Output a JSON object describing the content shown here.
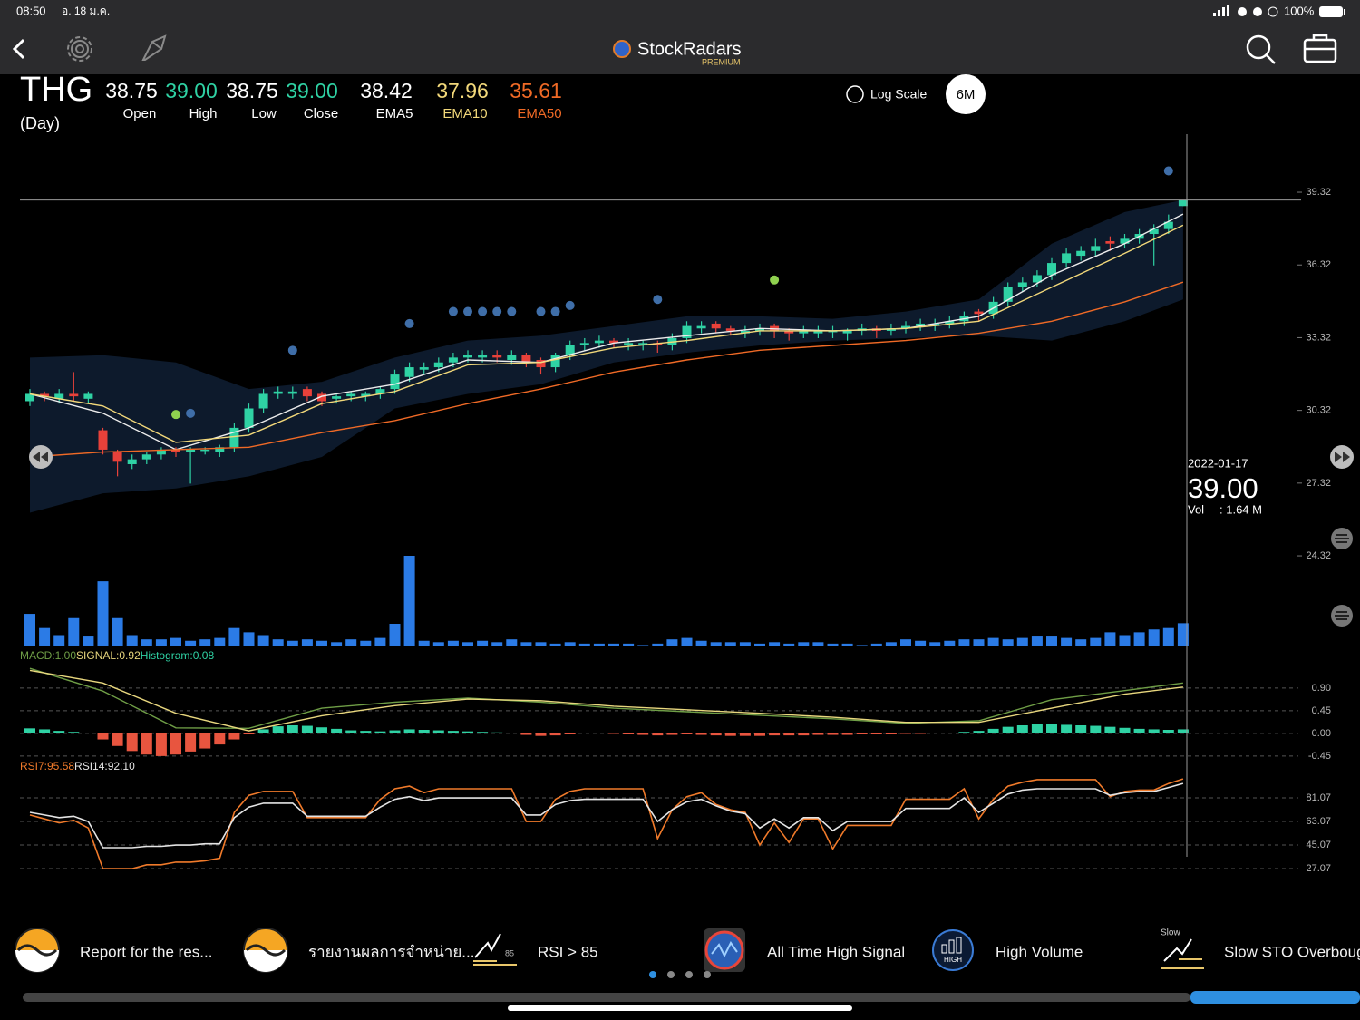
{
  "status_bar": {
    "time": "08:50",
    "date": "อ. 18 ม.ค.",
    "battery": "100%"
  },
  "header": {
    "brand": "StockRadars",
    "badge": "PREMIUM"
  },
  "quote": {
    "symbol": "THG",
    "period": "(Day)",
    "fields": [
      {
        "value": "38.75",
        "label": "Open"
      },
      {
        "value": "39.00",
        "label": "High"
      },
      {
        "value": "38.75",
        "label": "Low"
      },
      {
        "value": "39.00",
        "label": "Close"
      },
      {
        "value": "38.42",
        "label": "EMA5"
      },
      {
        "value": "37.96",
        "label": "EMA10"
      },
      {
        "value": "35.61",
        "label": "EMA50"
      }
    ]
  },
  "controls": {
    "log_scale": "Log Scale",
    "range": "6M"
  },
  "crosshair": {
    "date": "2022-01-17",
    "price": "39.00",
    "volume_label": "Vol",
    "volume": ": 1.64 M"
  },
  "signals": [
    {
      "text": "Report for the res..."
    },
    {
      "text": "รายงานผลการจำหน่าย..."
    },
    {
      "text": "RSI > 85",
      "badge": "85"
    },
    {
      "text": "All Time High Signal"
    },
    {
      "text": "High Volume",
      "badge": "HIGH"
    },
    {
      "text": "Slow STO Overboug",
      "badge": "Slow"
    }
  ],
  "chart_data": [
    {
      "type": "candlestick",
      "ylim": [
        24.06,
        41.64
      ],
      "yticks": [
        39.32,
        36.32,
        33.32,
        30.32,
        27.32,
        24.32
      ],
      "grid": false,
      "up_color": "#2fd2a4",
      "down_color": "#e8413a",
      "open": [
        30.7,
        31.0,
        30.8,
        31.0,
        30.8,
        29.5,
        28.6,
        28.1,
        28.3,
        28.5,
        28.7,
        28.6,
        28.7,
        28.6,
        28.8,
        29.6,
        30.4,
        31.0,
        31.0,
        31.2,
        31.0,
        30.8,
        30.9,
        30.9,
        31.0,
        31.2,
        31.7,
        32.0,
        32.1,
        32.3,
        32.5,
        32.5,
        32.6,
        32.4,
        32.6,
        32.4,
        32.1,
        32.6,
        33.0,
        33.1,
        33.2,
        33.0,
        33.0,
        33.1,
        33.0,
        33.3,
        33.7,
        33.9,
        33.7,
        33.5,
        33.6,
        33.8,
        33.6,
        33.5,
        33.5,
        33.6,
        33.5,
        33.6,
        33.7,
        33.6,
        33.7,
        33.8,
        33.8,
        33.9,
        34.0,
        34.4,
        34.3,
        34.8,
        35.4,
        35.6,
        35.9,
        36.4,
        36.7,
        36.9,
        37.3,
        37.2,
        37.4,
        37.6,
        37.8,
        38.75
      ],
      "high": [
        31.2,
        31.1,
        31.2,
        31.9,
        31.1,
        29.6,
        28.7,
        28.5,
        28.6,
        28.8,
        28.8,
        28.8,
        28.8,
        28.9,
        29.8,
        30.6,
        31.2,
        31.3,
        31.3,
        31.3,
        31.1,
        31.0,
        31.1,
        31.1,
        31.3,
        32.0,
        32.3,
        32.3,
        32.5,
        32.7,
        32.8,
        32.8,
        32.8,
        32.8,
        32.7,
        32.5,
        32.7,
        33.2,
        33.3,
        33.4,
        33.3,
        33.3,
        33.2,
        33.2,
        33.5,
        34.0,
        34.0,
        34.0,
        33.8,
        33.8,
        33.9,
        33.9,
        33.7,
        33.8,
        33.8,
        33.8,
        33.7,
        33.9,
        33.8,
        33.9,
        34.0,
        34.1,
        34.1,
        34.2,
        34.4,
        34.5,
        35.0,
        35.6,
        35.8,
        36.1,
        36.6,
        37.0,
        37.1,
        37.4,
        37.5,
        37.6,
        37.8,
        38.0,
        38.4,
        39.0
      ],
      "low": [
        30.5,
        30.7,
        30.6,
        30.7,
        30.6,
        28.5,
        27.6,
        27.9,
        28.1,
        28.3,
        28.4,
        27.3,
        28.5,
        28.4,
        28.6,
        29.4,
        30.2,
        30.8,
        30.8,
        30.7,
        30.5,
        30.6,
        30.7,
        30.7,
        30.8,
        31.0,
        31.5,
        31.8,
        31.9,
        32.1,
        32.3,
        32.3,
        32.3,
        32.2,
        32.1,
        31.8,
        31.9,
        32.4,
        32.8,
        32.9,
        32.9,
        32.8,
        32.8,
        32.7,
        32.8,
        33.1,
        33.5,
        33.5,
        33.4,
        33.3,
        33.4,
        33.3,
        33.2,
        33.3,
        33.3,
        33.3,
        33.2,
        33.4,
        33.3,
        33.4,
        33.5,
        33.6,
        33.6,
        33.7,
        33.8,
        34.0,
        34.1,
        34.6,
        35.2,
        35.4,
        35.7,
        36.2,
        36.5,
        36.7,
        36.9,
        37.0,
        37.2,
        36.3,
        37.6,
        38.75
      ],
      "close": [
        31.0,
        30.9,
        31.0,
        30.9,
        31.0,
        28.7,
        28.2,
        28.3,
        28.5,
        28.7,
        28.6,
        28.7,
        28.7,
        28.8,
        29.6,
        30.4,
        31.0,
        31.1,
        31.1,
        30.9,
        30.7,
        30.9,
        31.0,
        31.0,
        31.2,
        31.8,
        32.1,
        32.1,
        32.3,
        32.5,
        32.6,
        32.6,
        32.5,
        32.6,
        32.3,
        32.1,
        32.6,
        33.0,
        33.1,
        33.2,
        33.1,
        33.1,
        33.1,
        33.0,
        33.3,
        33.8,
        33.8,
        33.7,
        33.6,
        33.6,
        33.7,
        33.6,
        33.5,
        33.6,
        33.6,
        33.6,
        33.6,
        33.7,
        33.6,
        33.7,
        33.8,
        33.9,
        33.9,
        34.0,
        34.2,
        34.3,
        34.8,
        35.4,
        35.6,
        35.9,
        36.4,
        36.8,
        36.9,
        37.1,
        37.2,
        37.4,
        37.6,
        37.8,
        38.1,
        39.0
      ],
      "band": {
        "color": "#0d1a2c",
        "x": [
          0,
          5,
          10,
          15,
          20,
          25,
          30,
          35,
          40,
          45,
          50,
          55,
          60,
          65,
          70,
          75,
          79
        ],
        "upper": [
          32.5,
          32.6,
          32.3,
          31.2,
          31.5,
          32.5,
          33.2,
          33.4,
          33.8,
          34.2,
          34.2,
          34.1,
          34.4,
          34.9,
          37.2,
          38.5,
          39.0
        ],
        "lower": [
          26.1,
          26.9,
          27.1,
          27.6,
          28.4,
          30.4,
          31.0,
          31.4,
          32.3,
          32.7,
          33.0,
          33.2,
          33.3,
          33.4,
          33.2,
          34.0,
          34.9
        ]
      },
      "series": [
        {
          "color": "#ececec",
          "x": [
            0,
            5,
            10,
            15,
            20,
            25,
            30,
            35,
            40,
            45,
            50,
            55,
            60,
            65,
            70,
            75,
            79
          ],
          "values": [
            31.0,
            30.2,
            28.7,
            29.6,
            30.9,
            31.4,
            32.4,
            32.3,
            33.1,
            33.4,
            33.7,
            33.6,
            33.7,
            34.2,
            35.9,
            37.2,
            38.42
          ]
        },
        {
          "color": "#f2d87a",
          "x": [
            0,
            5,
            10,
            15,
            20,
            25,
            30,
            35,
            40,
            45,
            50,
            55,
            60,
            65,
            70,
            75,
            79
          ],
          "values": [
            31.0,
            30.5,
            29.0,
            29.3,
            30.6,
            31.1,
            32.2,
            32.3,
            32.9,
            33.2,
            33.6,
            33.6,
            33.7,
            34.0,
            35.4,
            36.8,
            37.96
          ]
        },
        {
          "color": "#f06a26",
          "x": [
            0,
            5,
            10,
            15,
            20,
            25,
            30,
            35,
            40,
            45,
            50,
            55,
            60,
            65,
            70,
            75,
            79
          ],
          "values": [
            28.4,
            28.6,
            28.7,
            28.8,
            29.4,
            29.9,
            30.6,
            31.2,
            31.9,
            32.4,
            32.8,
            33.0,
            33.2,
            33.5,
            34.0,
            34.8,
            35.61
          ]
        }
      ],
      "markers": [
        {
          "color": "#3f6ea8",
          "x": [
            11,
            18,
            26,
            29,
            30,
            31,
            32,
            33,
            35,
            36,
            37,
            43,
            78
          ],
          "values": [
            30.2,
            32.8,
            33.9,
            34.4,
            34.4,
            34.4,
            34.4,
            34.4,
            34.4,
            34.4,
            34.65,
            34.9,
            40.2
          ]
        },
        {
          "color": "#8fd14f",
          "x": [
            10,
            51
          ],
          "values": [
            30.15,
            35.7
          ]
        }
      ]
    },
    {
      "type": "bar",
      "color": "#2b7be6",
      "values": [
        2.3,
        1.3,
        0.8,
        2.0,
        0.7,
        4.6,
        2.0,
        0.8,
        0.5,
        0.5,
        0.6,
        0.4,
        0.5,
        0.6,
        1.3,
        1.0,
        0.8,
        0.5,
        0.4,
        0.5,
        0.4,
        0.3,
        0.5,
        0.4,
        0.6,
        1.6,
        6.4,
        0.4,
        0.3,
        0.4,
        0.3,
        0.4,
        0.3,
        0.5,
        0.3,
        0.3,
        0.2,
        0.3,
        0.2,
        0.2,
        0.2,
        0.2,
        0.1,
        0.2,
        0.5,
        0.6,
        0.4,
        0.3,
        0.3,
        0.3,
        0.2,
        0.3,
        0.2,
        0.3,
        0.3,
        0.2,
        0.2,
        0.1,
        0.2,
        0.3,
        0.5,
        0.4,
        0.3,
        0.4,
        0.5,
        0.5,
        0.6,
        0.5,
        0.6,
        0.7,
        0.7,
        0.6,
        0.5,
        0.6,
        1.0,
        0.8,
        1.0,
        1.2,
        1.3,
        1.64
      ]
    },
    {
      "type": "combo",
      "ylim": [
        -0.65,
        1.33
      ],
      "grid": true,
      "yticks": [
        {
          "value": 0.9,
          "label": "0.90"
        },
        {
          "value": 0.45,
          "label": "0.45"
        },
        {
          "value": 0,
          "label": "0.00"
        },
        {
          "value": -0.45,
          "label": "-0.45"
        }
      ],
      "series": [
        {
          "name": "MACD:1.00",
          "type": "line",
          "color": "#6f9e46",
          "x": [
            0,
            5,
            10,
            15,
            20,
            25,
            30,
            35,
            40,
            45,
            50,
            55,
            60,
            65,
            70,
            75,
            79
          ],
          "values": [
            1.29,
            0.84,
            0.11,
            0.1,
            0.5,
            0.62,
            0.7,
            0.62,
            0.5,
            0.43,
            0.36,
            0.29,
            0.2,
            0.25,
            0.67,
            0.85,
            1.0
          ]
        },
        {
          "name": "SIGNAL:0.92",
          "type": "line",
          "color": "#e8d77e",
          "x": [
            0,
            5,
            10,
            15,
            20,
            25,
            30,
            35,
            40,
            45,
            50,
            55,
            60,
            65,
            70,
            75,
            79
          ],
          "values": [
            1.25,
            1.0,
            0.4,
            0.05,
            0.35,
            0.55,
            0.68,
            0.65,
            0.54,
            0.47,
            0.4,
            0.32,
            0.22,
            0.22,
            0.5,
            0.78,
            0.92
          ]
        },
        {
          "name": "Histogram:0.08",
          "type": "bar",
          "color": "#2fd2a4",
          "negative_color": "#e8553f",
          "values": [
            0.1,
            0.08,
            0.05,
            0.03,
            0.0,
            -0.12,
            -0.25,
            -0.35,
            -0.42,
            -0.45,
            -0.42,
            -0.36,
            -0.3,
            -0.22,
            -0.12,
            -0.02,
            0.08,
            0.14,
            0.16,
            0.15,
            0.12,
            0.09,
            0.06,
            0.05,
            0.04,
            0.06,
            0.08,
            0.07,
            0.06,
            0.05,
            0.04,
            0.03,
            0.02,
            0.0,
            -0.03,
            -0.05,
            -0.04,
            -0.02,
            0.0,
            0.01,
            -0.01,
            -0.02,
            -0.03,
            -0.04,
            -0.03,
            -0.02,
            -0.03,
            -0.04,
            -0.05,
            -0.05,
            -0.05,
            -0.04,
            -0.04,
            -0.04,
            -0.03,
            -0.03,
            -0.03,
            -0.02,
            -0.02,
            -0.02,
            -0.01,
            -0.01,
            0.0,
            0.01,
            0.03,
            0.05,
            0.09,
            0.13,
            0.16,
            0.18,
            0.18,
            0.17,
            0.16,
            0.15,
            0.13,
            0.11,
            0.09,
            0.08,
            0.07,
            0.08
          ]
        }
      ]
    },
    {
      "type": "line",
      "ylim": [
        22.22,
        101.85
      ],
      "grid": true,
      "yticks": [
        81.07,
        63.07,
        45.07,
        27.07
      ],
      "series": [
        {
          "name": "RSI7:95.58",
          "color": "#f07a2a",
          "values": [
            68,
            65,
            62,
            64,
            58,
            27,
            27,
            27,
            30,
            30,
            32,
            32,
            33,
            35,
            70,
            83,
            86,
            86,
            86,
            66,
            66,
            66,
            66,
            66,
            80,
            88,
            90,
            85,
            88,
            88,
            88,
            88,
            88,
            88,
            63,
            63,
            80,
            86,
            88,
            88,
            88,
            88,
            88,
            50,
            72,
            82,
            85,
            76,
            72,
            70,
            45,
            62,
            47,
            65,
            65,
            42,
            60,
            60,
            60,
            60,
            80,
            80,
            80,
            80,
            88,
            65,
            80,
            90,
            93,
            95,
            95,
            95,
            95,
            95,
            82,
            86,
            87,
            87,
            92,
            95.58
          ]
        },
        {
          "name": "RSI14:92.10",
          "color": "#e4e4e4",
          "values": [
            70,
            68,
            66,
            67,
            63,
            43,
            43,
            43,
            44,
            44,
            45,
            45,
            46,
            46,
            66,
            74,
            77,
            77,
            77,
            67,
            67,
            67,
            67,
            67,
            74,
            80,
            82,
            79,
            81,
            81,
            81,
            81,
            81,
            81,
            68,
            68,
            76,
            79,
            80,
            80,
            80,
            80,
            80,
            63,
            72,
            78,
            80,
            75,
            71,
            69,
            58,
            65,
            58,
            66,
            66,
            56,
            63,
            63,
            63,
            63,
            73,
            73,
            73,
            73,
            81,
            70,
            77,
            84,
            87,
            88,
            88,
            88,
            88,
            88,
            83,
            85,
            86,
            86,
            89,
            92.1
          ]
        }
      ]
    }
  ]
}
